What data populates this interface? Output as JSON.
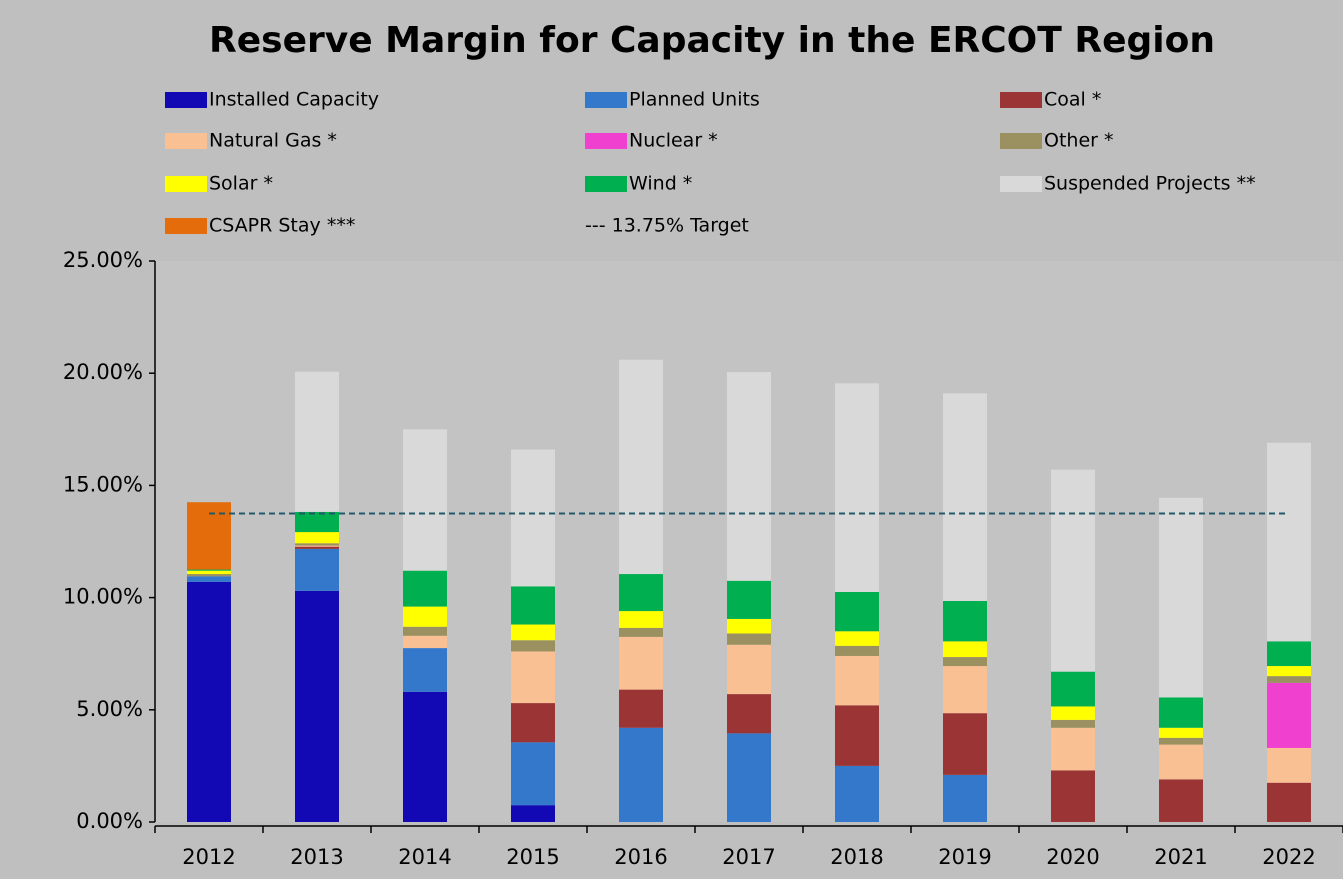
{
  "chart_data": {
    "type": "stacked_bar",
    "title": "Reserve Margin for Capacity in the ERCOT Region",
    "categories": [
      "2012",
      "2013",
      "2014",
      "2015",
      "2016",
      "2017",
      "2018",
      "2019",
      "2020",
      "2021",
      "2022"
    ],
    "series": [
      {
        "name": "Installed Capacity",
        "color": "#1208b4",
        "values": [
          10.7,
          10.3,
          5.8,
          0.75,
          null,
          null,
          null,
          null,
          null,
          null,
          null
        ]
      },
      {
        "name": "Planned Units",
        "color": "#3478cc",
        "values": [
          0.25,
          1.87,
          1.95,
          2.8,
          4.2,
          3.95,
          2.5,
          2.1,
          null,
          null,
          null
        ]
      },
      {
        "name": "Coal *",
        "color": "#9b3535",
        "values": [
          null,
          0.1,
          null,
          1.75,
          1.7,
          1.75,
          2.7,
          2.75,
          2.3,
          1.9,
          1.75
        ]
      },
      {
        "name": "Natural Gas *",
        "color": "#f9c193",
        "values": [
          null,
          0.05,
          0.55,
          2.3,
          2.35,
          2.2,
          2.2,
          2.1,
          1.9,
          1.55,
          1.55
        ]
      },
      {
        "name": "Nuclear *",
        "color": "#f040d0",
        "values": [
          null,
          null,
          null,
          null,
          null,
          null,
          null,
          null,
          null,
          null,
          2.9
        ]
      },
      {
        "name": "Other *",
        "color": "#9b9060",
        "values": [
          0.1,
          0.1,
          0.4,
          0.5,
          0.4,
          0.5,
          0.45,
          0.4,
          0.35,
          0.3,
          0.3
        ]
      },
      {
        "name": "Solar *",
        "color": "#ffff00",
        "values": [
          0.15,
          0.5,
          0.9,
          0.7,
          0.75,
          0.65,
          0.65,
          0.7,
          0.6,
          0.45,
          0.45
        ]
      },
      {
        "name": "Wind *",
        "color": "#00b050",
        "values": [
          0.05,
          0.9,
          1.6,
          1.7,
          1.65,
          1.7,
          1.75,
          1.8,
          1.55,
          1.35,
          1.1
        ]
      },
      {
        "name": "Suspended Projects **",
        "color": "#d9d9d9",
        "values": [
          null,
          6.25,
          6.3,
          6.1,
          9.55,
          9.3,
          9.3,
          9.25,
          9.0,
          8.9,
          8.85
        ]
      },
      {
        "name": "CSAPR Stay ***",
        "color": "#e46c0a",
        "values": [
          3.0,
          null,
          null,
          null,
          null,
          null,
          null,
          null,
          null,
          null,
          null
        ]
      }
    ],
    "target": {
      "name": "--- 13.75% Target",
      "value": 13.75,
      "color": "#215968"
    },
    "ylim": [
      0,
      25
    ],
    "yticks": [
      {
        "value": 0,
        "label": "0.00%"
      },
      {
        "value": 5,
        "label": "5.00%"
      },
      {
        "value": 10,
        "label": "10.00%"
      },
      {
        "value": 15,
        "label": "15.00%"
      },
      {
        "value": 20,
        "label": "20.00%"
      },
      {
        "value": 25,
        "label": "25.00%"
      }
    ]
  }
}
